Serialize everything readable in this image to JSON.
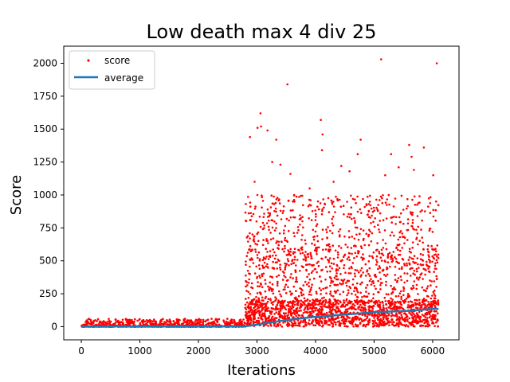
{
  "chart_data": {
    "type": "scatter",
    "title": "Low death max 4 div 25",
    "xlabel": "Iterations",
    "ylabel": "Score",
    "xlim": [
      -300,
      6450
    ],
    "ylim": [
      -100,
      2130
    ],
    "xticks": [
      0,
      1000,
      2000,
      3000,
      4000,
      5000,
      6000
    ],
    "yticks": [
      0,
      250,
      500,
      750,
      1000,
      1250,
      1500,
      1750,
      2000
    ],
    "grid": false,
    "legend_position": "top-left",
    "series": [
      {
        "name": "score",
        "kind": "points",
        "color": "#ff0000",
        "notable_points": [
          [
            2880,
            1440
          ],
          [
            2960,
            1100
          ],
          [
            3010,
            1510
          ],
          [
            3060,
            1620
          ],
          [
            3070,
            1520
          ],
          [
            3180,
            1490
          ],
          [
            3260,
            1250
          ],
          [
            3330,
            1420
          ],
          [
            3400,
            1230
          ],
          [
            3520,
            1840
          ],
          [
            3570,
            1160
          ],
          [
            3900,
            1050
          ],
          [
            4090,
            1570
          ],
          [
            4110,
            1340
          ],
          [
            4120,
            1460
          ],
          [
            4310,
            1100
          ],
          [
            4440,
            1220
          ],
          [
            4580,
            1180
          ],
          [
            4720,
            1310
          ],
          [
            4770,
            1420
          ],
          [
            5120,
            2030
          ],
          [
            5190,
            1150
          ],
          [
            5290,
            1310
          ],
          [
            5420,
            1210
          ],
          [
            5600,
            1380
          ],
          [
            5640,
            1290
          ],
          [
            5680,
            1190
          ],
          [
            5850,
            1360
          ],
          [
            6010,
            1150
          ],
          [
            6070,
            2000
          ]
        ],
        "bulk": [
          {
            "x_range": [
              0,
              2800
            ],
            "y_range": [
              0,
              60
            ]
          },
          {
            "x_range": [
              2800,
              4000
            ],
            "y_range": [
              0,
              900
            ]
          },
          {
            "x_range": [
              4000,
              6100
            ],
            "y_range": [
              0,
              1000
            ]
          }
        ]
      },
      {
        "name": "average",
        "kind": "line",
        "color": "#1f77b4",
        "x": [
          0,
          500,
          1000,
          1500,
          2000,
          2500,
          2800,
          3000,
          3200,
          3500,
          3800,
          4000,
          4300,
          4600,
          5000,
          5300,
          5600,
          6000,
          6100
        ],
        "y": [
          0,
          2,
          3,
          3,
          2,
          2,
          3,
          15,
          30,
          50,
          65,
          75,
          85,
          95,
          110,
          115,
          120,
          135,
          135
        ]
      }
    ]
  }
}
